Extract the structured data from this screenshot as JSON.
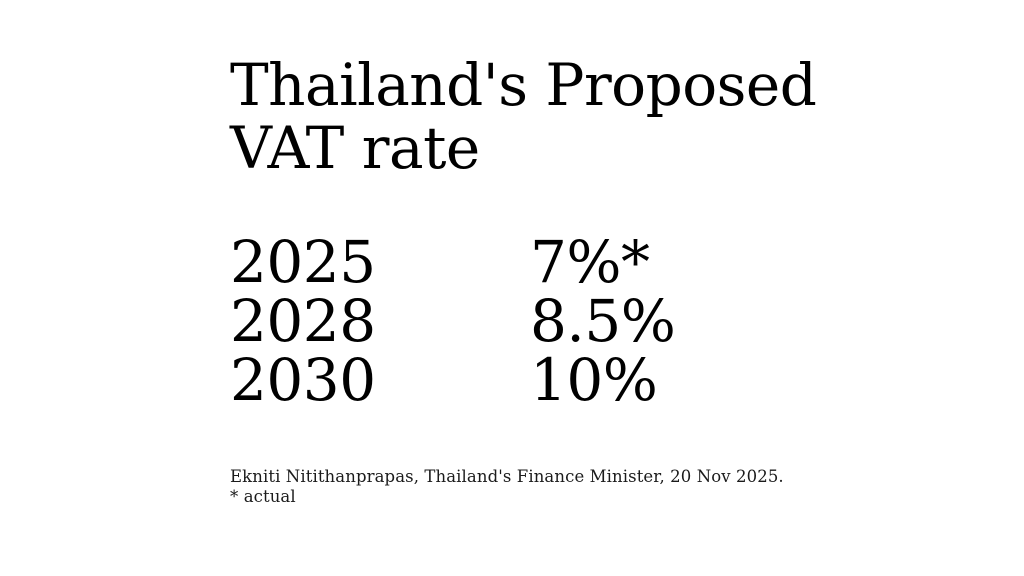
{
  "page": {
    "background_color": "#ffffff",
    "text_color": "#000000",
    "footer_text_color": "#1b1b1b"
  },
  "slide": {
    "title_lines": [
      "Thailand's Proposed",
      "VAT rate"
    ],
    "rows": [
      {
        "year": "2025",
        "rate": "7%*"
      },
      {
        "year": "2028",
        "rate": "8.5%"
      },
      {
        "year": "2030",
        "rate": "10%"
      }
    ],
    "source_line": "Ekniti Nitithanprapas, Thailand's Finance Minister, 20 Nov 2025.",
    "footnote_line": "* actual"
  },
  "chart_data": {
    "type": "table",
    "title": "Thailand's Proposed VAT rate",
    "categories": [
      "2025",
      "2028",
      "2030"
    ],
    "values": [
      7,
      8.5,
      10
    ],
    "value_labels": [
      "7%*",
      "8.5%",
      "10%"
    ],
    "unit": "percent VAT rate",
    "footnote": "* actual",
    "source": "Ekniti Nitithanprapas, Thailand's Finance Minister, 20 Nov 2025.",
    "layout": {
      "legend": "none",
      "grid": false,
      "columns": [
        "year",
        "rate"
      ]
    }
  }
}
